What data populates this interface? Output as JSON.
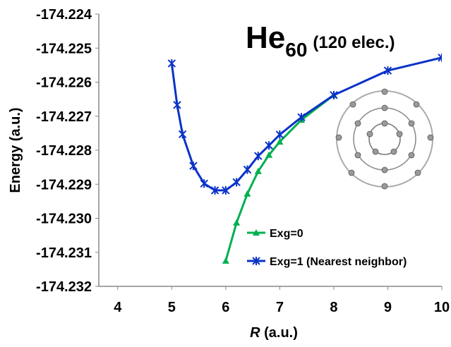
{
  "chart_data": {
    "type": "line",
    "title": "He",
    "title_subscript": "60",
    "title_suffix": "(120 elec.)",
    "xlabel_var": "R",
    "xlabel": "(a.u.)",
    "ylabel": "Energy (a.u.)",
    "xlim": [
      3.65,
      10
    ],
    "xticks": [
      4,
      5,
      6,
      7,
      8,
      9,
      10
    ],
    "ylim": [
      -174.232,
      -174.224
    ],
    "yticks": [
      -174.232,
      -174.231,
      {
        "value": -174.23,
        "label": "-174.230"
      },
      -174.229,
      -174.228,
      -174.227,
      -174.226,
      -174.225,
      -174.224
    ],
    "legend": "lower right",
    "series": [
      {
        "name": "Exg=0",
        "color": "#00b050",
        "marker": "triangle",
        "x": [
          6.0,
          6.2,
          6.4,
          6.6,
          6.8,
          7.0,
          7.4,
          8
        ],
        "values": [
          -174.23125,
          -174.23013,
          -174.22928,
          -174.22862,
          -174.22814,
          -174.22775,
          -174.22711,
          -174.22638
        ]
      },
      {
        "name": "Exg=1 (Nearest neighbor)",
        "color": "#0a32c8",
        "marker": "star",
        "x": [
          5,
          5.1,
          5.2,
          5.4,
          5.6,
          5.8,
          6.0,
          6.2,
          6.4,
          6.6,
          6.8,
          7.0,
          7.4,
          8,
          9,
          10
        ],
        "values": [
          -174.22545,
          -174.22667,
          -174.22753,
          -174.22846,
          -174.22898,
          -174.22918,
          -174.22918,
          -174.22894,
          -174.22857,
          -174.22817,
          -174.22786,
          -174.22754,
          -174.22703,
          -174.22638,
          -174.22566,
          -174.22528
        ]
      }
    ]
  }
}
